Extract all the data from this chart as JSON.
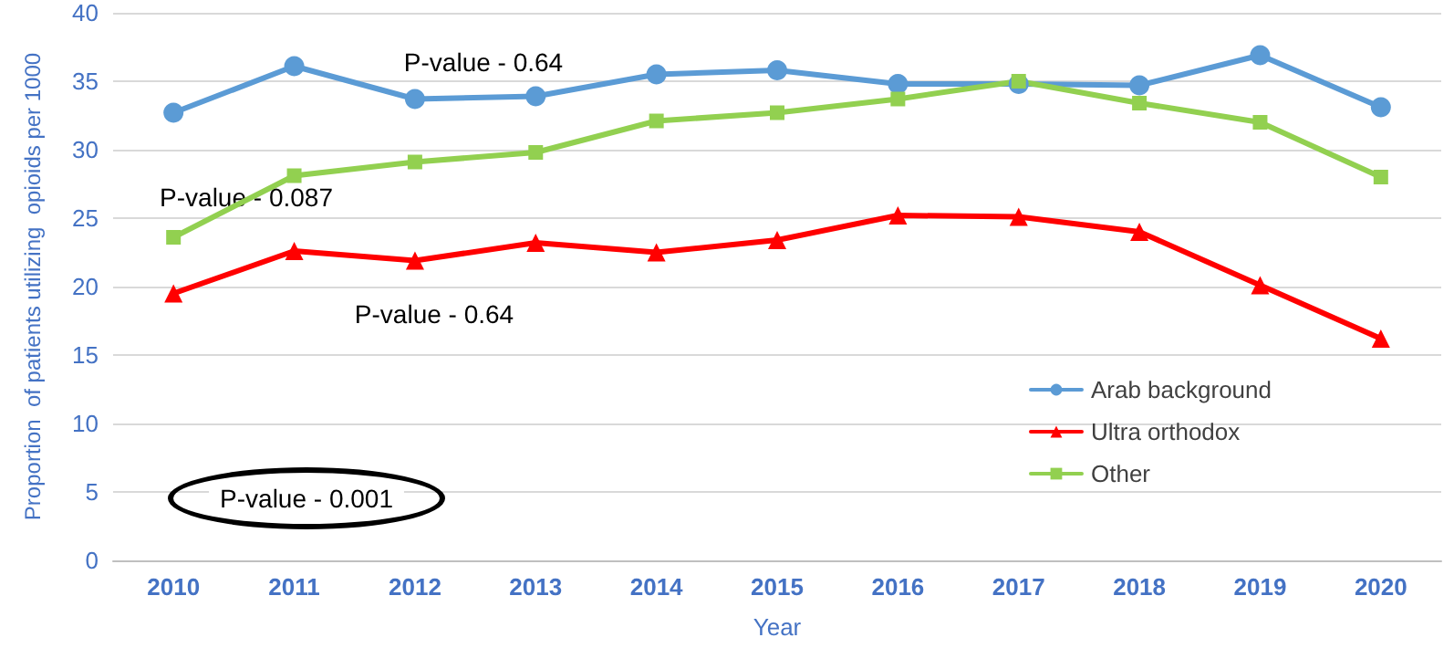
{
  "chart_data": {
    "type": "line",
    "xlabel": "Year",
    "ylabel": "Proportion  of patients utilizing  opioids per 1000",
    "categories": [
      "2010",
      "2011",
      "2012",
      "2013",
      "2014",
      "2015",
      "2016",
      "2017",
      "2018",
      "2019",
      "2020"
    ],
    "series": [
      {
        "name": "Arab background",
        "color": "#5b9bd5",
        "marker": "circle",
        "values": [
          32.7,
          36.1,
          33.7,
          33.9,
          35.5,
          35.8,
          34.8,
          34.8,
          34.7,
          36.9,
          33.1
        ]
      },
      {
        "name": "Ultra orthodox",
        "color": "#ff0000",
        "marker": "triangle",
        "values": [
          19.5,
          22.6,
          21.9,
          23.2,
          22.5,
          23.4,
          25.2,
          25.1,
          24.0,
          20.1,
          16.2
        ]
      },
      {
        "name": "Other",
        "color": "#92d050",
        "marker": "square",
        "values": [
          23.6,
          28.1,
          29.1,
          29.8,
          32.1,
          32.7,
          33.7,
          35.0,
          33.4,
          32.0,
          28.0
        ]
      }
    ],
    "ylim": [
      0,
      40
    ],
    "yticks": [
      0,
      5,
      10,
      15,
      20,
      25,
      30,
      35,
      40
    ],
    "grid": "y",
    "legend": "bottom right",
    "line_style": "solid",
    "annotations": [
      "P-value - 0.64",
      "P-value - 0.087",
      "P-value - 0.64",
      "P-value - 0.001"
    ]
  }
}
